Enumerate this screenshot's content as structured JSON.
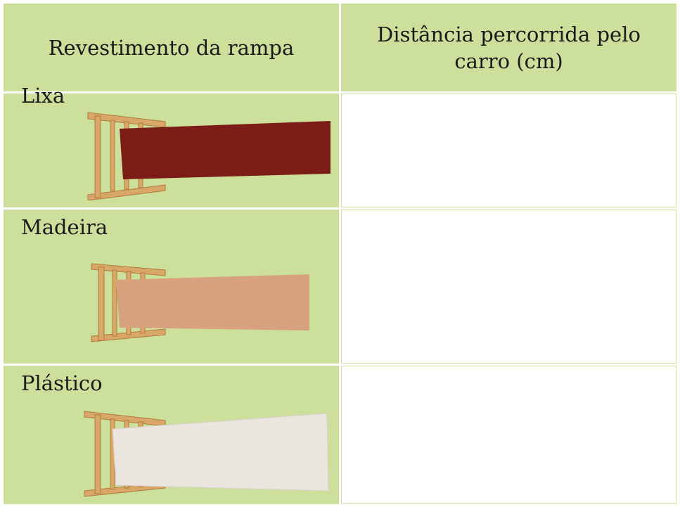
{
  "table": {
    "header": [
      "Revestimento da rampa",
      "Distância percorrida pelo carro (cm)"
    ],
    "rows": [
      "Lixa",
      "Madeira",
      "Plástico"
    ]
  }
}
